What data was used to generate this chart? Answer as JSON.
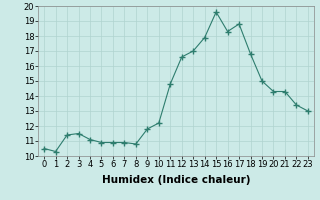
{
  "x": [
    0,
    1,
    2,
    3,
    4,
    5,
    6,
    7,
    8,
    9,
    10,
    11,
    12,
    13,
    14,
    15,
    16,
    17,
    18,
    19,
    20,
    21,
    22,
    23
  ],
  "y": [
    10.5,
    10.3,
    11.4,
    11.5,
    11.1,
    10.9,
    10.9,
    10.9,
    10.8,
    11.8,
    12.2,
    14.8,
    16.6,
    17.0,
    17.9,
    19.6,
    18.3,
    18.8,
    16.8,
    15.0,
    14.3,
    14.3,
    13.4,
    13.0
  ],
  "line_color": "#2e7d6e",
  "marker": "+",
  "marker_size": 4,
  "bg_color": "#cceae7",
  "grid_color": "#b0d4d0",
  "xlabel": "Humidex (Indice chaleur)",
  "ylim": [
    10,
    20
  ],
  "xlim_min": -0.5,
  "xlim_max": 23.5,
  "yticks": [
    10,
    11,
    12,
    13,
    14,
    15,
    16,
    17,
    18,
    19,
    20
  ],
  "xticks": [
    0,
    1,
    2,
    3,
    4,
    5,
    6,
    7,
    8,
    9,
    10,
    11,
    12,
    13,
    14,
    15,
    16,
    17,
    18,
    19,
    20,
    21,
    22,
    23
  ],
  "tick_fontsize": 6,
  "label_fontsize": 7.5
}
